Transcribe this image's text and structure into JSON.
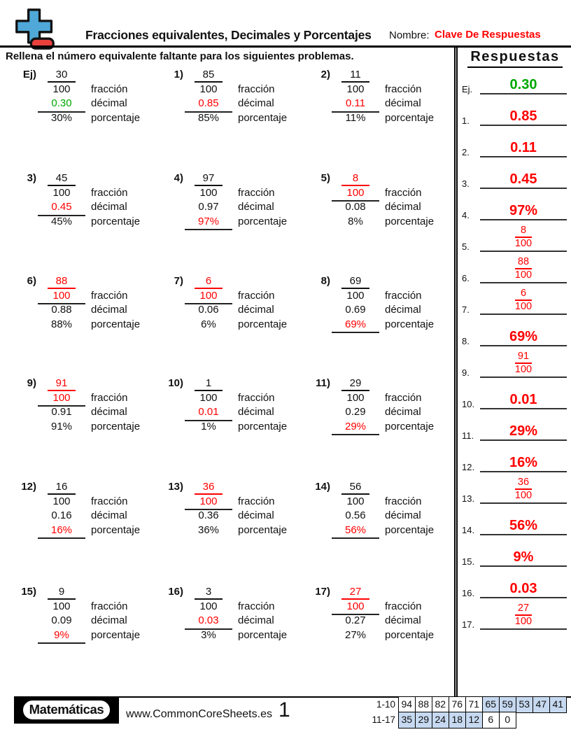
{
  "header": {
    "title": "Fracciones equivalentes, Decimales y Porcentajes",
    "name_label": "Nombre:",
    "name_value": "Clave De Respuestas",
    "instruction": "Rellena el número equivalente faltante para los siguientes problemas."
  },
  "labels": {
    "fraction": "fracción",
    "decimal": "décimal",
    "percent": "porcentaje",
    "denominator": "100"
  },
  "colors": {
    "answer_red": "#ff0000",
    "example_green": "#00a800",
    "table_highlight": "#c6d9f0",
    "logo_blue": "#4fa8d8",
    "logo_red": "#e8413c"
  },
  "problems": [
    {
      "id": "Ej)",
      "numerator": "30",
      "decimal": "0.30",
      "percent": "30%",
      "answer_field": "decimal",
      "answer_color": "green"
    },
    {
      "id": "1)",
      "numerator": "85",
      "decimal": "0.85",
      "percent": "85%",
      "answer_field": "decimal",
      "answer_color": "red"
    },
    {
      "id": "2)",
      "numerator": "11",
      "decimal": "0.11",
      "percent": "11%",
      "answer_field": "decimal",
      "answer_color": "red"
    },
    {
      "id": "3)",
      "numerator": "45",
      "decimal": "0.45",
      "percent": "45%",
      "answer_field": "decimal",
      "answer_color": "red"
    },
    {
      "id": "4)",
      "numerator": "97",
      "decimal": "0.97",
      "percent": "97%",
      "answer_field": "percent",
      "answer_color": "red"
    },
    {
      "id": "5)",
      "numerator": "8",
      "decimal": "0.08",
      "percent": "8%",
      "answer_field": "fraction",
      "answer_color": "red"
    },
    {
      "id": "6)",
      "numerator": "88",
      "decimal": "0.88",
      "percent": "88%",
      "answer_field": "fraction",
      "answer_color": "red"
    },
    {
      "id": "7)",
      "numerator": "6",
      "decimal": "0.06",
      "percent": "6%",
      "answer_field": "fraction",
      "answer_color": "red"
    },
    {
      "id": "8)",
      "numerator": "69",
      "decimal": "0.69",
      "percent": "69%",
      "answer_field": "percent",
      "answer_color": "red"
    },
    {
      "id": "9)",
      "numerator": "91",
      "decimal": "0.91",
      "percent": "91%",
      "answer_field": "fraction",
      "answer_color": "red"
    },
    {
      "id": "10)",
      "numerator": "1",
      "decimal": "0.01",
      "percent": "1%",
      "answer_field": "decimal",
      "answer_color": "red"
    },
    {
      "id": "11)",
      "numerator": "29",
      "decimal": "0.29",
      "percent": "29%",
      "answer_field": "percent",
      "answer_color": "red"
    },
    {
      "id": "12)",
      "numerator": "16",
      "decimal": "0.16",
      "percent": "16%",
      "answer_field": "percent",
      "answer_color": "red"
    },
    {
      "id": "13)",
      "numerator": "36",
      "decimal": "0.36",
      "percent": "36%",
      "answer_field": "fraction",
      "answer_color": "red"
    },
    {
      "id": "14)",
      "numerator": "56",
      "decimal": "0.56",
      "percent": "56%",
      "answer_field": "percent",
      "answer_color": "red"
    },
    {
      "id": "15)",
      "numerator": "9",
      "decimal": "0.09",
      "percent": "9%",
      "answer_field": "percent",
      "answer_color": "red"
    },
    {
      "id": "16)",
      "numerator": "3",
      "decimal": "0.03",
      "percent": "3%",
      "answer_field": "decimal",
      "answer_color": "red"
    },
    {
      "id": "17)",
      "numerator": "27",
      "decimal": "0.27",
      "percent": "27%",
      "answer_field": "fraction",
      "answer_color": "red"
    }
  ],
  "answers": {
    "title": "Respuestas",
    "items": [
      {
        "id": "Ej.",
        "type": "decimal",
        "value": "0.30",
        "color": "green"
      },
      {
        "id": "1.",
        "type": "decimal",
        "value": "0.85",
        "color": "red"
      },
      {
        "id": "2.",
        "type": "decimal",
        "value": "0.11",
        "color": "red"
      },
      {
        "id": "3.",
        "type": "decimal",
        "value": "0.45",
        "color": "red"
      },
      {
        "id": "4.",
        "type": "percent",
        "value": "97%",
        "color": "red"
      },
      {
        "id": "5.",
        "type": "fraction",
        "numerator": "8",
        "denominator": "100",
        "color": "red"
      },
      {
        "id": "6.",
        "type": "fraction",
        "numerator": "88",
        "denominator": "100",
        "color": "red"
      },
      {
        "id": "7.",
        "type": "fraction",
        "numerator": "6",
        "denominator": "100",
        "color": "red"
      },
      {
        "id": "8.",
        "type": "percent",
        "value": "69%",
        "color": "red"
      },
      {
        "id": "9.",
        "type": "fraction",
        "numerator": "91",
        "denominator": "100",
        "color": "red"
      },
      {
        "id": "10.",
        "type": "decimal",
        "value": "0.01",
        "color": "red"
      },
      {
        "id": "11.",
        "type": "percent",
        "value": "29%",
        "color": "red"
      },
      {
        "id": "12.",
        "type": "percent",
        "value": "16%",
        "color": "red"
      },
      {
        "id": "13.",
        "type": "fraction",
        "numerator": "36",
        "denominator": "100",
        "color": "red"
      },
      {
        "id": "14.",
        "type": "percent",
        "value": "56%",
        "color": "red"
      },
      {
        "id": "15.",
        "type": "percent",
        "value": "9%",
        "color": "red"
      },
      {
        "id": "16.",
        "type": "decimal",
        "value": "0.03",
        "color": "red"
      },
      {
        "id": "17.",
        "type": "fraction",
        "numerator": "27",
        "denominator": "100",
        "color": "red"
      }
    ]
  },
  "footer": {
    "brand": "Matemáticas",
    "url": "www.CommonCoreSheets.es",
    "page": "1",
    "score_table": {
      "rows": [
        {
          "label": "1-10",
          "cells": [
            "94",
            "88",
            "82",
            "76",
            "71",
            "65",
            "59",
            "53",
            "47",
            "41"
          ],
          "highlighted": [
            false,
            false,
            false,
            false,
            false,
            true,
            true,
            true,
            true,
            true
          ]
        },
        {
          "label": "11-17",
          "cells": [
            "35",
            "29",
            "24",
            "18",
            "12",
            "6",
            "0"
          ],
          "highlighted": [
            true,
            true,
            true,
            true,
            true,
            false,
            false
          ]
        }
      ]
    }
  }
}
